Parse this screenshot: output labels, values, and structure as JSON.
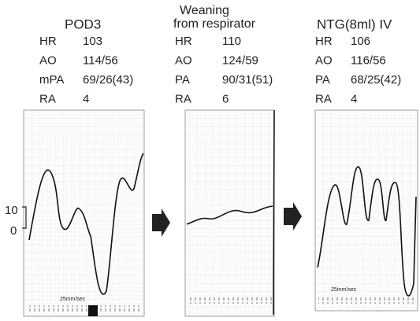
{
  "panels": [
    {
      "title": [
        "POD3"
      ],
      "rows": [
        [
          "HR",
          "103"
        ],
        [
          "AO",
          "114/56"
        ],
        [
          "mPA",
          "69/26(43)"
        ],
        [
          "RA",
          "4"
        ]
      ],
      "speed": "25mm/sec"
    },
    {
      "title": [
        "Weaning",
        "from respirator"
      ],
      "rows": [
        [
          "HR",
          "110"
        ],
        [
          "AO",
          "124/59"
        ],
        [
          "PA",
          "90/31(51)"
        ],
        [
          "RA",
          "6"
        ]
      ]
    },
    {
      "title": [
        "NTG(8ml)  IV"
      ],
      "rows": [
        [
          "HR",
          "106"
        ],
        [
          "AO",
          "116/56"
        ],
        [
          "PA",
          "68/25(42)"
        ],
        [
          "RA",
          "4"
        ]
      ],
      "speed": "25mm/sec"
    }
  ],
  "scale": {
    "top": "10",
    "bottom": "0"
  }
}
